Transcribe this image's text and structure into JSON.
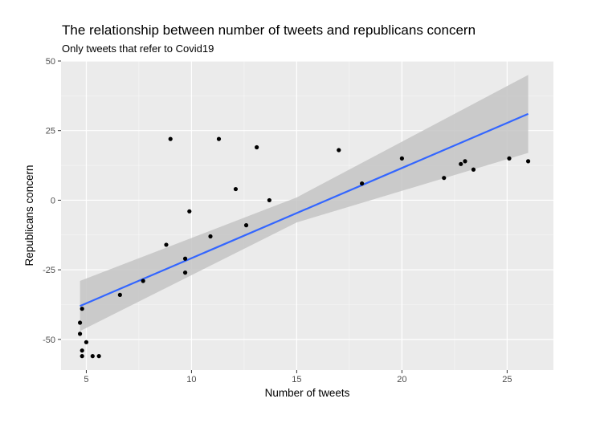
{
  "chart_data": {
    "type": "scatter",
    "title": "The relationship between number of tweets and republicans concern",
    "subtitle": "Only tweets that refer to Covid19",
    "xlabel": "Number of tweets",
    "ylabel": "Republicans concern",
    "xlim": [
      3.8,
      27.2
    ],
    "ylim": [
      -61,
      50
    ],
    "x_ticks": [
      5,
      10,
      15,
      20,
      25
    ],
    "y_ticks": [
      -50,
      -25,
      0,
      25,
      50
    ],
    "grid": true,
    "points": [
      {
        "x": 4.7,
        "y": -44
      },
      {
        "x": 4.7,
        "y": -48
      },
      {
        "x": 4.8,
        "y": -39
      },
      {
        "x": 4.8,
        "y": -54
      },
      {
        "x": 4.8,
        "y": -56
      },
      {
        "x": 5.0,
        "y": -51
      },
      {
        "x": 5.3,
        "y": -56
      },
      {
        "x": 5.6,
        "y": -56
      },
      {
        "x": 6.6,
        "y": -34
      },
      {
        "x": 7.7,
        "y": -29
      },
      {
        "x": 8.8,
        "y": -16
      },
      {
        "x": 9.0,
        "y": 22
      },
      {
        "x": 9.7,
        "y": -21
      },
      {
        "x": 9.7,
        "y": -26
      },
      {
        "x": 9.9,
        "y": -4
      },
      {
        "x": 10.9,
        "y": -13
      },
      {
        "x": 11.3,
        "y": 22
      },
      {
        "x": 12.1,
        "y": 4
      },
      {
        "x": 12.6,
        "y": -9
      },
      {
        "x": 13.1,
        "y": 19
      },
      {
        "x": 13.7,
        "y": 0
      },
      {
        "x": 17.0,
        "y": 18
      },
      {
        "x": 18.1,
        "y": 6
      },
      {
        "x": 20.0,
        "y": 15
      },
      {
        "x": 22.0,
        "y": 8
      },
      {
        "x": 22.8,
        "y": 13
      },
      {
        "x": 23.0,
        "y": 14
      },
      {
        "x": 23.4,
        "y": 11
      },
      {
        "x": 25.1,
        "y": 15
      },
      {
        "x": 26.0,
        "y": 14
      }
    ],
    "trend_line": {
      "type": "linear",
      "x": [
        4.7,
        26.0
      ],
      "y": [
        -38,
        31
      ]
    },
    "confidence_band": {
      "x": [
        4.7,
        15.0,
        26.0
      ],
      "lower": [
        -47,
        -8,
        17
      ],
      "upper": [
        -29,
        1,
        45
      ]
    },
    "colors": {
      "panel": "#ebebeb",
      "grid_major": "#ffffff",
      "points": "#000000",
      "trend_line": "#3366ff",
      "band": "#c4c4c4"
    }
  }
}
